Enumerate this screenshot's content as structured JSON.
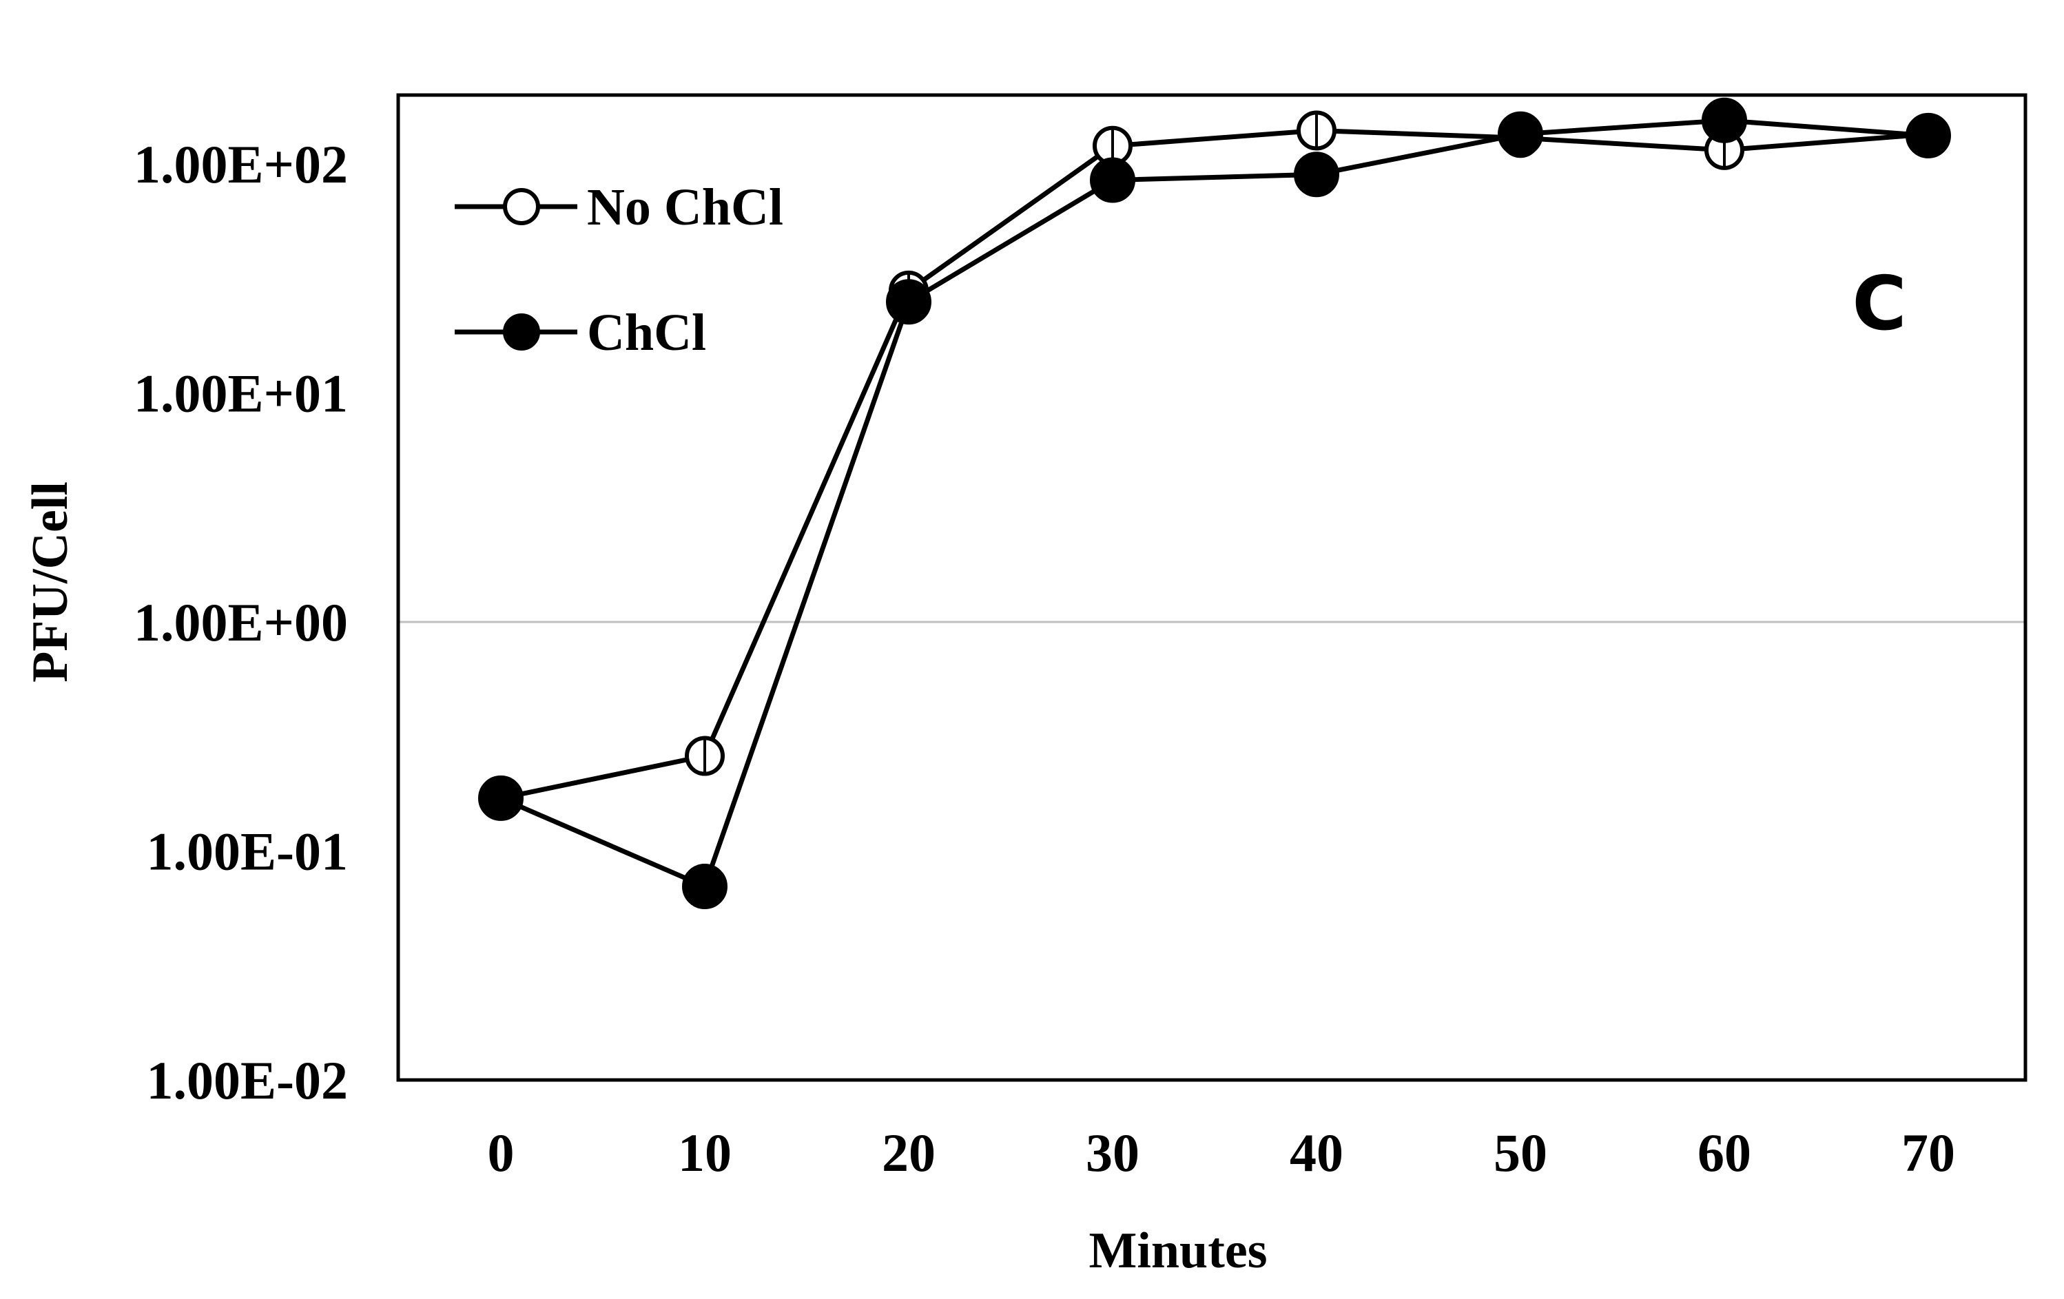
{
  "chart_data": {
    "type": "line",
    "title": "",
    "panel_label": "C",
    "xlabel": "Minutes",
    "ylabel": "PFU/Cell",
    "x": [
      0,
      10,
      20,
      30,
      40,
      50,
      60,
      70
    ],
    "x_tick_labels": [
      "0",
      "10",
      "20",
      "30",
      "40",
      "50",
      "60",
      "70"
    ],
    "y_scale": "log",
    "ylim": [
      0.01,
      200
    ],
    "y_ticks": [
      0.01,
      0.1,
      1,
      10,
      100
    ],
    "y_tick_labels": [
      "1.00E-02",
      "1.00E-01",
      "1.00E+00",
      "1.00E+01",
      "1.00E+02"
    ],
    "gridlines": [
      1
    ],
    "legend_position": "top-left",
    "series": [
      {
        "name": "No ChCl",
        "marker": "open-circle",
        "values": [
          0.17,
          0.26,
          28,
          120,
          140,
          130,
          115,
          135
        ]
      },
      {
        "name": "ChCl",
        "marker": "filled-circle",
        "values": [
          0.17,
          0.07,
          25,
          85,
          90,
          135,
          155,
          133
        ]
      }
    ],
    "colors": {
      "line": "#000000",
      "grid": "#bfbfbf",
      "frame": "#000000"
    }
  }
}
